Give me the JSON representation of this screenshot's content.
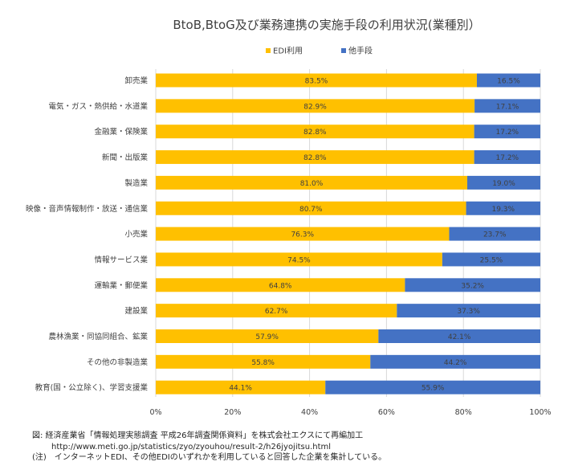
{
  "chart_data": {
    "type": "bar",
    "orientation": "horizontal",
    "stacked": true,
    "title": "BtoB,BtoG及び業務連携の実施手段の利用状況(業種別）",
    "categories": [
      "卸売業",
      "電気・ガス・熱供給・水道業",
      "金融業・保険業",
      "新聞・出版業",
      "製造業",
      "映像・音声情報制作・放送・通信業",
      "小売業",
      "情報サービス業",
      "運輸業・郵便業",
      "建設業",
      "農林漁業・同協同組合、鉱業",
      "その他の非製造業",
      "教育(国・公立除く)、学習支援業"
    ],
    "series": [
      {
        "name": "EDI利用",
        "color": "#FFC000",
        "values": [
          83.5,
          82.9,
          82.8,
          82.8,
          81.0,
          80.7,
          76.3,
          74.5,
          64.8,
          62.7,
          57.9,
          55.8,
          44.1
        ]
      },
      {
        "name": "他手段",
        "color": "#4472C4",
        "values": [
          16.5,
          17.1,
          17.2,
          17.2,
          19.0,
          19.3,
          23.7,
          25.5,
          35.2,
          37.3,
          42.1,
          44.2,
          55.9
        ]
      }
    ],
    "xlim": [
      0,
      100
    ],
    "xticks": [
      "0%",
      "20%",
      "40%",
      "60%",
      "80%",
      "100%"
    ],
    "value_suffix": "%",
    "legend_position": "top",
    "grid": true
  },
  "footnotes": {
    "source": "図: 経済産業省「情報処理実態調査 平成26年調査関係資料」を株式会社エクスにて再編加工",
    "url": "http://www.meti.go.jp/statistics/zyo/zyouhou/result-2/h26jyojitsu.html",
    "note": "(注)　インターネットEDI、その他EDIのいずれかを利用していると回答した企業を集計している。"
  }
}
